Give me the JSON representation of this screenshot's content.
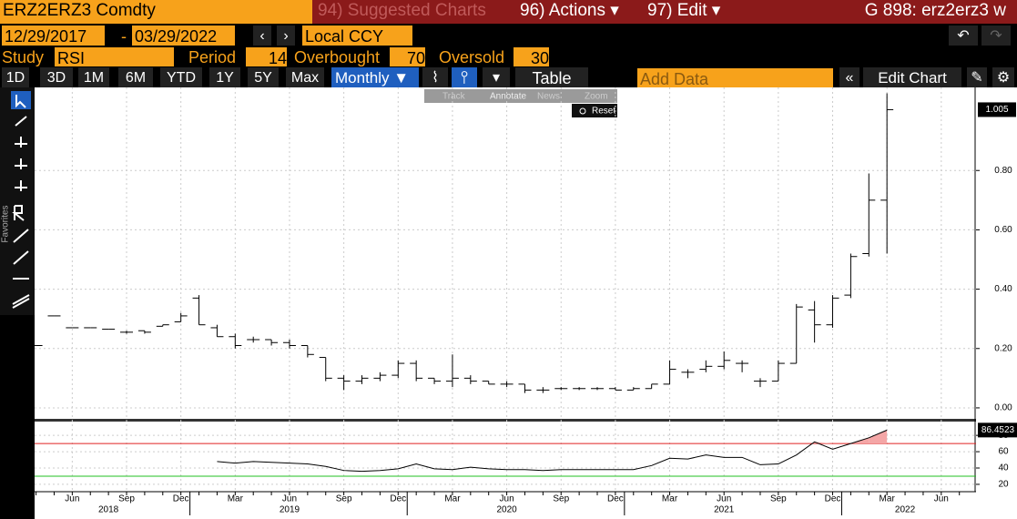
{
  "header": {
    "ticker": "ERZ2ERZ3 Comdty",
    "suggested": "94) Suggested Charts",
    "actions": "96) Actions ▾",
    "edit": "97) Edit ▾",
    "function": "G 898: erz2erz3 w"
  },
  "range": {
    "start": "12/29/2017",
    "separator": "-",
    "end": "03/29/2022",
    "currency": "Local CCY"
  },
  "study": {
    "label": "Study",
    "name": "RSI",
    "period_label": "Period",
    "period": 14,
    "overbought_label": "Overbought",
    "overbought": 70,
    "oversold_label": "Oversold",
    "oversold": 30
  },
  "toolbar": {
    "periods": [
      "1D",
      "3D",
      "1M",
      "6M",
      "YTD",
      "1Y",
      "5Y",
      "Max"
    ],
    "frequency": "Monthly ▼",
    "table": "Table",
    "add_data": "Add Data",
    "edit_chart": "Edit Chart"
  },
  "modes": [
    "Track",
    "Annotate",
    "News",
    "Zoom"
  ],
  "reset": "Reset",
  "favorites": "Favorites",
  "chart_data": [
    {
      "type": "ohlc",
      "color": "#000000",
      "categories": [
        null,
        null,
        "Jun",
        null,
        null,
        "Sep",
        null,
        null,
        "Dec",
        null,
        null,
        "Mar",
        null,
        null,
        "Jun",
        null,
        null,
        "Sep",
        null,
        null,
        "Dec",
        null,
        null,
        "Mar",
        null,
        null,
        "Jun",
        null,
        null,
        "Sep",
        null,
        null,
        "Dec",
        null,
        null,
        "Mar",
        null,
        null,
        "Jun",
        null,
        null,
        "Sep",
        null,
        null,
        "Dec",
        null,
        null,
        "Mar",
        null,
        null,
        "Jun",
        null
      ],
      "year_labels": [
        null,
        null,
        null,
        null,
        "2018",
        null,
        null,
        null,
        null,
        null,
        null,
        null,
        null,
        null,
        "2019",
        null,
        null,
        null,
        null,
        null,
        null,
        null,
        null,
        null,
        null,
        null,
        "2020",
        null,
        null,
        null,
        null,
        null,
        null,
        null,
        null,
        null,
        null,
        null,
        "2021",
        null,
        null,
        null,
        null,
        null,
        null,
        null,
        null,
        null,
        "2022",
        null,
        null,
        null
      ],
      "open": [
        0.21,
        0.31,
        0.27,
        0.27,
        0.265,
        0.255,
        0.26,
        0.275,
        0.29,
        0.37,
        0.27,
        0.24,
        0.23,
        0.23,
        0.22,
        0.21,
        0.17,
        0.1,
        0.09,
        0.1,
        0.11,
        0.15,
        0.1,
        0.09,
        0.1,
        0.09,
        0.08,
        0.08,
        0.06,
        0.065,
        0.065,
        0.065,
        0.065,
        0.06,
        0.065,
        0.08,
        0.12,
        0.13,
        0.14,
        0.15,
        0.09,
        0.09,
        0.15,
        0.33,
        0.28,
        0.38,
        0.52,
        0.7,
        null,
        null,
        null,
        null
      ],
      "high": [
        0.21,
        0.31,
        0.27,
        0.27,
        0.265,
        0.26,
        0.26,
        0.28,
        0.32,
        0.38,
        0.28,
        0.25,
        0.24,
        0.23,
        0.23,
        0.21,
        0.17,
        0.11,
        0.11,
        0.12,
        0.16,
        0.16,
        0.1,
        0.18,
        0.11,
        0.09,
        0.09,
        0.08,
        0.07,
        0.07,
        0.07,
        0.07,
        0.07,
        0.07,
        0.08,
        0.16,
        0.13,
        0.16,
        0.19,
        0.16,
        0.1,
        0.16,
        0.35,
        0.36,
        0.38,
        0.52,
        0.79,
        1.06,
        null,
        null,
        null,
        null
      ],
      "low": [
        0.21,
        0.31,
        0.27,
        0.27,
        0.265,
        0.25,
        0.25,
        0.275,
        0.29,
        0.28,
        0.24,
        0.2,
        0.22,
        0.21,
        0.2,
        0.17,
        0.09,
        0.06,
        0.08,
        0.09,
        0.1,
        0.09,
        0.08,
        0.07,
        0.08,
        0.08,
        0.07,
        0.05,
        0.05,
        0.06,
        0.06,
        0.06,
        0.06,
        0.06,
        0.065,
        0.08,
        0.1,
        0.12,
        0.13,
        0.12,
        0.07,
        0.09,
        0.15,
        0.22,
        0.27,
        0.37,
        0.51,
        0.52,
        null,
        null,
        null,
        null
      ],
      "close": [
        0.21,
        0.31,
        0.27,
        0.27,
        0.265,
        0.255,
        0.255,
        0.28,
        0.31,
        0.28,
        0.24,
        0.21,
        0.23,
        0.22,
        0.21,
        0.18,
        0.1,
        0.09,
        0.1,
        0.11,
        0.15,
        0.1,
        0.09,
        0.1,
        0.09,
        0.08,
        0.08,
        0.06,
        0.06,
        0.065,
        0.065,
        0.065,
        0.06,
        0.065,
        0.08,
        0.13,
        0.12,
        0.14,
        0.16,
        0.15,
        0.09,
        0.15,
        0.34,
        0.28,
        0.37,
        0.51,
        0.7,
        1.005,
        null,
        null,
        null,
        null
      ],
      "ylim": [
        -0.037,
        1.08
      ],
      "yticks": [
        {
          "value": 0,
          "label": "0.00"
        },
        {
          "value": 0.2,
          "label": "0.20"
        },
        {
          "value": 0.4,
          "label": "0.40"
        },
        {
          "value": 0.6,
          "label": "0.60"
        },
        {
          "value": 0.8,
          "label": "0.80"
        }
      ],
      "grid": true
    },
    {
      "type": "line",
      "color": "#000000",
      "fill_color": "#f4a6a6",
      "values": [
        null,
        null,
        null,
        null,
        null,
        null,
        null,
        null,
        null,
        null,
        48,
        46,
        48,
        47,
        46,
        45,
        42,
        37,
        36,
        37,
        39,
        45,
        39,
        38,
        41,
        39,
        38,
        38,
        37,
        38,
        38,
        38,
        38,
        38,
        43,
        52,
        51,
        56,
        53,
        53,
        44,
        45,
        56,
        72,
        63,
        70,
        77,
        86.4523,
        null,
        null,
        null,
        null
      ],
      "ylim": [
        11,
        98
      ],
      "yticks": [
        20,
        40,
        60,
        80
      ],
      "grid": true
    }
  ]
}
